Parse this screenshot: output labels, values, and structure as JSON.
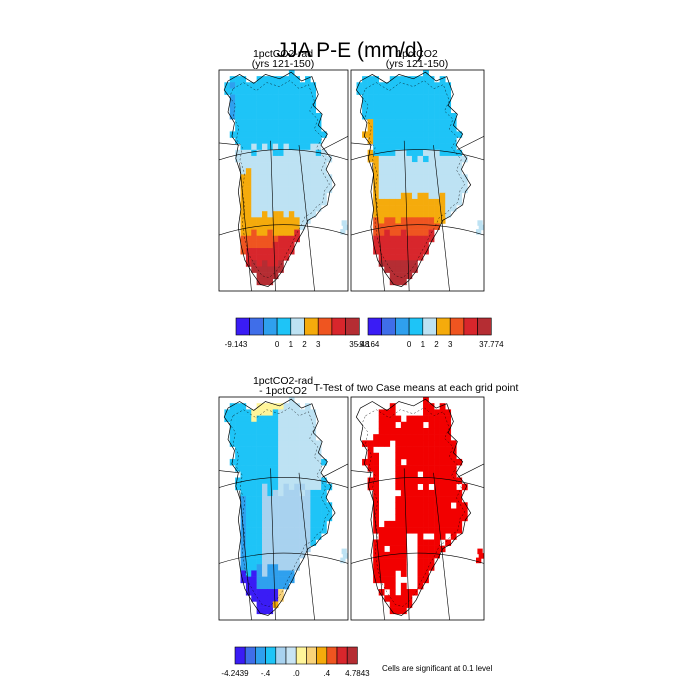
{
  "title": "JJA P-E (mm/d)",
  "panels": [
    {
      "id": "top-left",
      "title_line1": "1pctCO2-rad",
      "title_line2": "(yrs 121-150)",
      "variant": "rad"
    },
    {
      "id": "top-right",
      "title_line1": "1pctCO2",
      "title_line2": "(yrs 121-150)",
      "variant": "ctl"
    },
    {
      "id": "bottom-left",
      "title_line1": "1pctCO2-rad",
      "title_line2": "- 1pctCO2",
      "variant": "diff"
    },
    {
      "id": "bottom-right",
      "title_line1": "T-Test of two Case means at each grid point",
      "title_line2": "",
      "variant": "sig"
    }
  ],
  "colorbars": [
    {
      "id": "cb-top-left",
      "colors": [
        "#3a1cf5",
        "#3f6ee9",
        "#2fa0ee",
        "#1ec4f7",
        "#bde2f3",
        "#f5ab0c",
        "#ef5520",
        "#d8262c",
        "#b52d33"
      ],
      "labels": [
        "-9.143",
        "0",
        "1",
        "2",
        "3",
        "35.48"
      ]
    },
    {
      "id": "cb-top-right",
      "colors": [
        "#3a1cf5",
        "#3f6ee9",
        "#2fa0ee",
        "#1ec4f7",
        "#bde2f3",
        "#f5ab0c",
        "#ef5520",
        "#d8262c",
        "#b52d33"
      ],
      "labels": [
        "-9.164",
        "0",
        "1",
        "2",
        "3",
        "37.774"
      ]
    },
    {
      "id": "cb-bottom",
      "colors": [
        "#3a1cf5",
        "#3f6ee9",
        "#2fa0ee",
        "#1ec4f7",
        "#a8d2ef",
        "#c8e4f4",
        "#fff59a",
        "#f9d37a",
        "#f5ab0c",
        "#ef5520",
        "#d8262c",
        "#b52d33"
      ],
      "labels": [
        "-4.2439",
        "-.4",
        ".0",
        ".4",
        "4.7843"
      ]
    }
  ],
  "significance_note": "Cells are significant at 0.1 level",
  "chart_data": {
    "type": "heatmap",
    "title": "JJA P-E (mm/d)",
    "subplots": [
      {
        "name": "1pctCO2-rad (yrs 121-150)",
        "range": [
          -9.143,
          35.48
        ],
        "levels": [
          0,
          1,
          2,
          3
        ]
      },
      {
        "name": "1pctCO2 (yrs 121-150)",
        "range": [
          -9.164,
          37.774
        ],
        "levels": [
          0,
          1,
          2,
          3
        ]
      },
      {
        "name": "1pctCO2-rad - 1pctCO2",
        "range": [
          -4.2439,
          4.7843
        ],
        "levels": [
          -0.4,
          0.0,
          0.4
        ]
      },
      {
        "name": "T-Test of two Case means at each grid point",
        "significance_level": 0.1
      }
    ]
  }
}
